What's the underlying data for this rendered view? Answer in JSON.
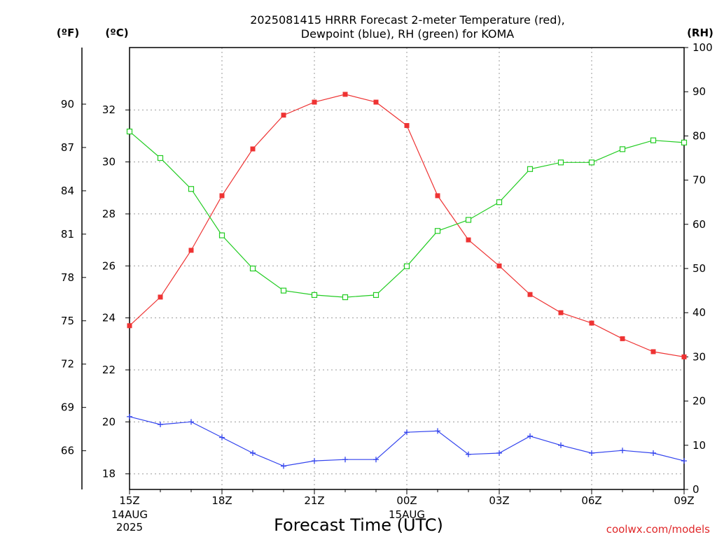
{
  "chart_data": {
    "type": "line",
    "title_line1": "2025081415 HRRR Forecast 2-meter Temperature (red),",
    "title_line2": "Dewpoint (blue), RH (green) for KOMA",
    "xlabel": "Forecast Time (UTC)",
    "unit_f": "(ºF)",
    "unit_c": "(ºC)",
    "unit_rh": "(RH)",
    "credit": "coolwx.com/models",
    "date_labels": [
      {
        "hour": 0,
        "lines": [
          "14AUG",
          "2025"
        ]
      },
      {
        "hour": 9,
        "lines": [
          "15AUG"
        ]
      }
    ],
    "x_ticks": [
      {
        "hour": 0,
        "label": "15Z"
      },
      {
        "hour": 3,
        "label": "18Z"
      },
      {
        "hour": 6,
        "label": "21Z"
      },
      {
        "hour": 9,
        "label": "00Z"
      },
      {
        "hour": 12,
        "label": "03Z"
      },
      {
        "hour": 15,
        "label": "06Z"
      },
      {
        "hour": 18,
        "label": "09Z"
      }
    ],
    "x_range": [
      0,
      18
    ],
    "c_range": [
      17.4,
      34.4
    ],
    "rh_range": [
      0,
      100
    ],
    "c_ticks": [
      18,
      20,
      22,
      24,
      26,
      28,
      30,
      32
    ],
    "f_ticks": [
      66,
      69,
      72,
      75,
      78,
      81,
      84,
      87,
      90
    ],
    "rh_ticks": [
      0,
      10,
      20,
      30,
      40,
      50,
      60,
      70,
      80,
      90,
      100
    ],
    "grid": true,
    "series": [
      {
        "name": "Temperature",
        "axis": "c",
        "color": "#ee3333",
        "marker": "filled-square",
        "values": [
          23.7,
          24.8,
          26.6,
          28.7,
          30.5,
          31.8,
          32.3,
          32.6,
          32.3,
          31.4,
          28.7,
          27.0,
          26.0,
          24.9,
          24.2,
          23.8,
          23.2,
          22.7,
          22.5
        ]
      },
      {
        "name": "Dewpoint",
        "axis": "c",
        "color": "#3344ee",
        "marker": "plus",
        "values": [
          20.2,
          19.9,
          20.0,
          19.4,
          18.8,
          18.3,
          18.5,
          18.55,
          18.55,
          19.6,
          19.65,
          18.75,
          18.8,
          19.45,
          19.1,
          18.8,
          18.9,
          18.8,
          18.5
        ]
      },
      {
        "name": "RH",
        "axis": "rh",
        "color": "#22cc22",
        "marker": "open-square",
        "values": [
          81,
          75,
          68,
          57.5,
          50,
          45,
          44,
          43.5,
          44,
          50.5,
          58.5,
          61,
          65,
          72.5,
          74,
          74,
          77,
          79,
          78.5
        ]
      }
    ]
  }
}
